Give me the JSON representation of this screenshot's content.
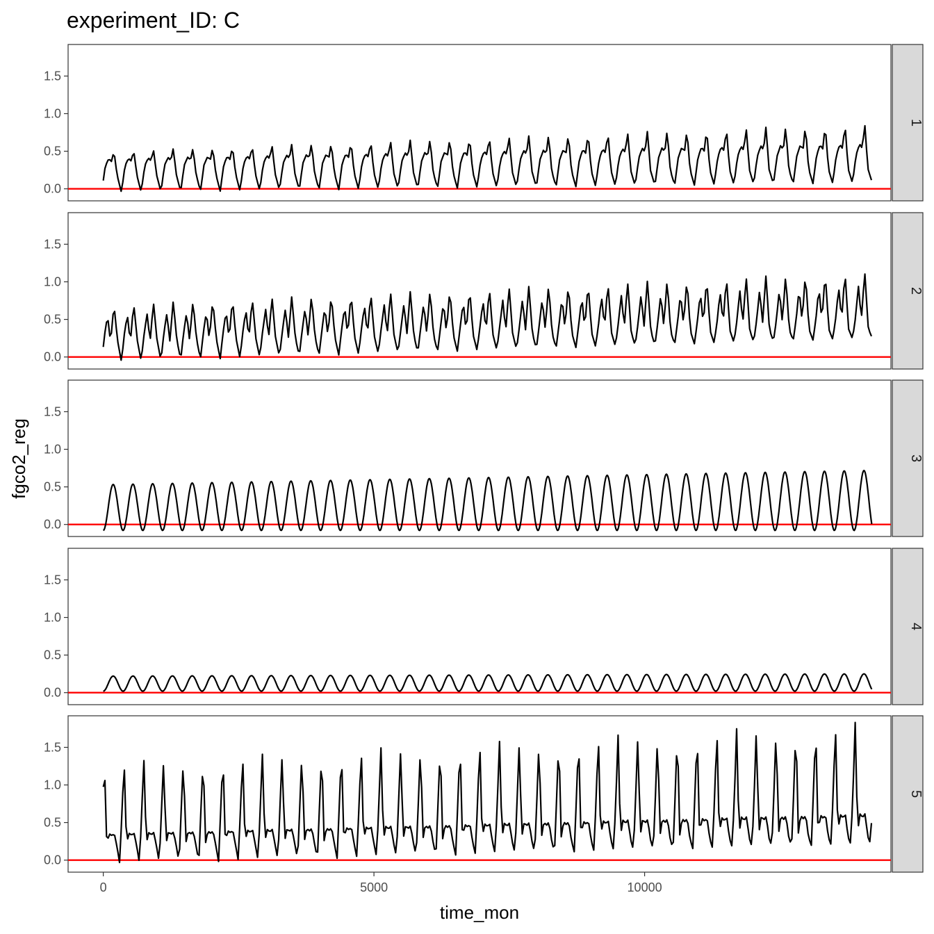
{
  "chart_data": {
    "type": "line",
    "title": "experiment_ID: C",
    "xlabel": "time_mon",
    "ylabel": "fgco2_reg",
    "xlim": [
      -650,
      14550
    ],
    "ylim": [
      -0.16,
      1.92
    ],
    "x_ticks": [
      0,
      5000,
      10000
    ],
    "x_tick_labels": [
      "0",
      "5000",
      "10000"
    ],
    "y_ticks": [
      0.0,
      0.5,
      1.0,
      1.5
    ],
    "y_tick_labels": [
      "0.0",
      "0.5",
      "1.0",
      "1.5"
    ],
    "reference_line": {
      "y": 0,
      "color": "#FF0000"
    },
    "line_color": "#000000",
    "strip_fill": "#D9D9D9",
    "facets": [
      {
        "label": "1",
        "shape": "sharp",
        "x": [
          0,
          14200
        ],
        "period": 365,
        "phase": 30,
        "trough": [
          -0.05,
          0.08
        ],
        "peak": [
          0.5,
          0.88
        ],
        "shoulder": [
          0.4,
          0.6
        ]
      },
      {
        "label": "2",
        "shape": "double",
        "x": [
          0,
          14200
        ],
        "period": 365,
        "phase": 30,
        "trough": [
          -0.07,
          0.25
        ],
        "peak": [
          0.7,
          1.15
        ],
        "shoulder": [
          0.55,
          0.95
        ]
      },
      {
        "label": "3",
        "shape": "sine",
        "x": [
          0,
          14200
        ],
        "period": 365,
        "phase": 0,
        "trough": [
          -0.08,
          -0.08
        ],
        "peak": [
          0.53,
          0.72
        ]
      },
      {
        "label": "4",
        "shape": "sine",
        "x": [
          0,
          14200
        ],
        "period": 365,
        "phase": 0,
        "trough": [
          0.02,
          0.02
        ],
        "peak": [
          0.22,
          0.25
        ]
      },
      {
        "label": "5",
        "shape": "spike",
        "x": [
          0,
          14200
        ],
        "period": 365,
        "phase": 60,
        "trough": [
          -0.06,
          0.22
        ],
        "peak": [
          1.3,
          1.85
        ],
        "shoulder": [
          0.35,
          0.62
        ]
      }
    ]
  }
}
